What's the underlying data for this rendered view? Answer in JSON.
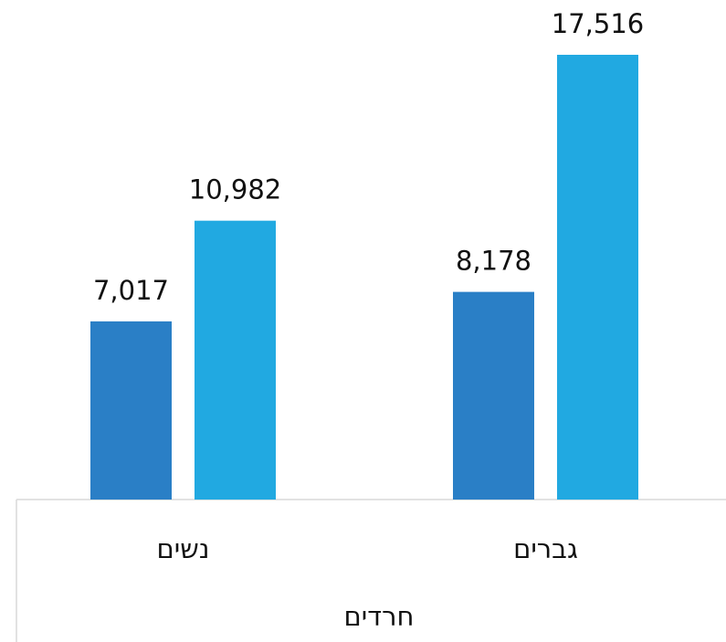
{
  "chart_data": {
    "type": "bar",
    "categories": [
      "נשים",
      "גברים"
    ],
    "group_label": "חרדים",
    "series": [
      {
        "color": "#2a7fc6",
        "values": [
          7017,
          8178
        ],
        "value_labels": [
          "7,017",
          "8,178"
        ]
      },
      {
        "color": "#21a9e1",
        "values": [
          10982,
          17516
        ],
        "value_labels": [
          "10,982",
          "17,516"
        ]
      }
    ]
  }
}
